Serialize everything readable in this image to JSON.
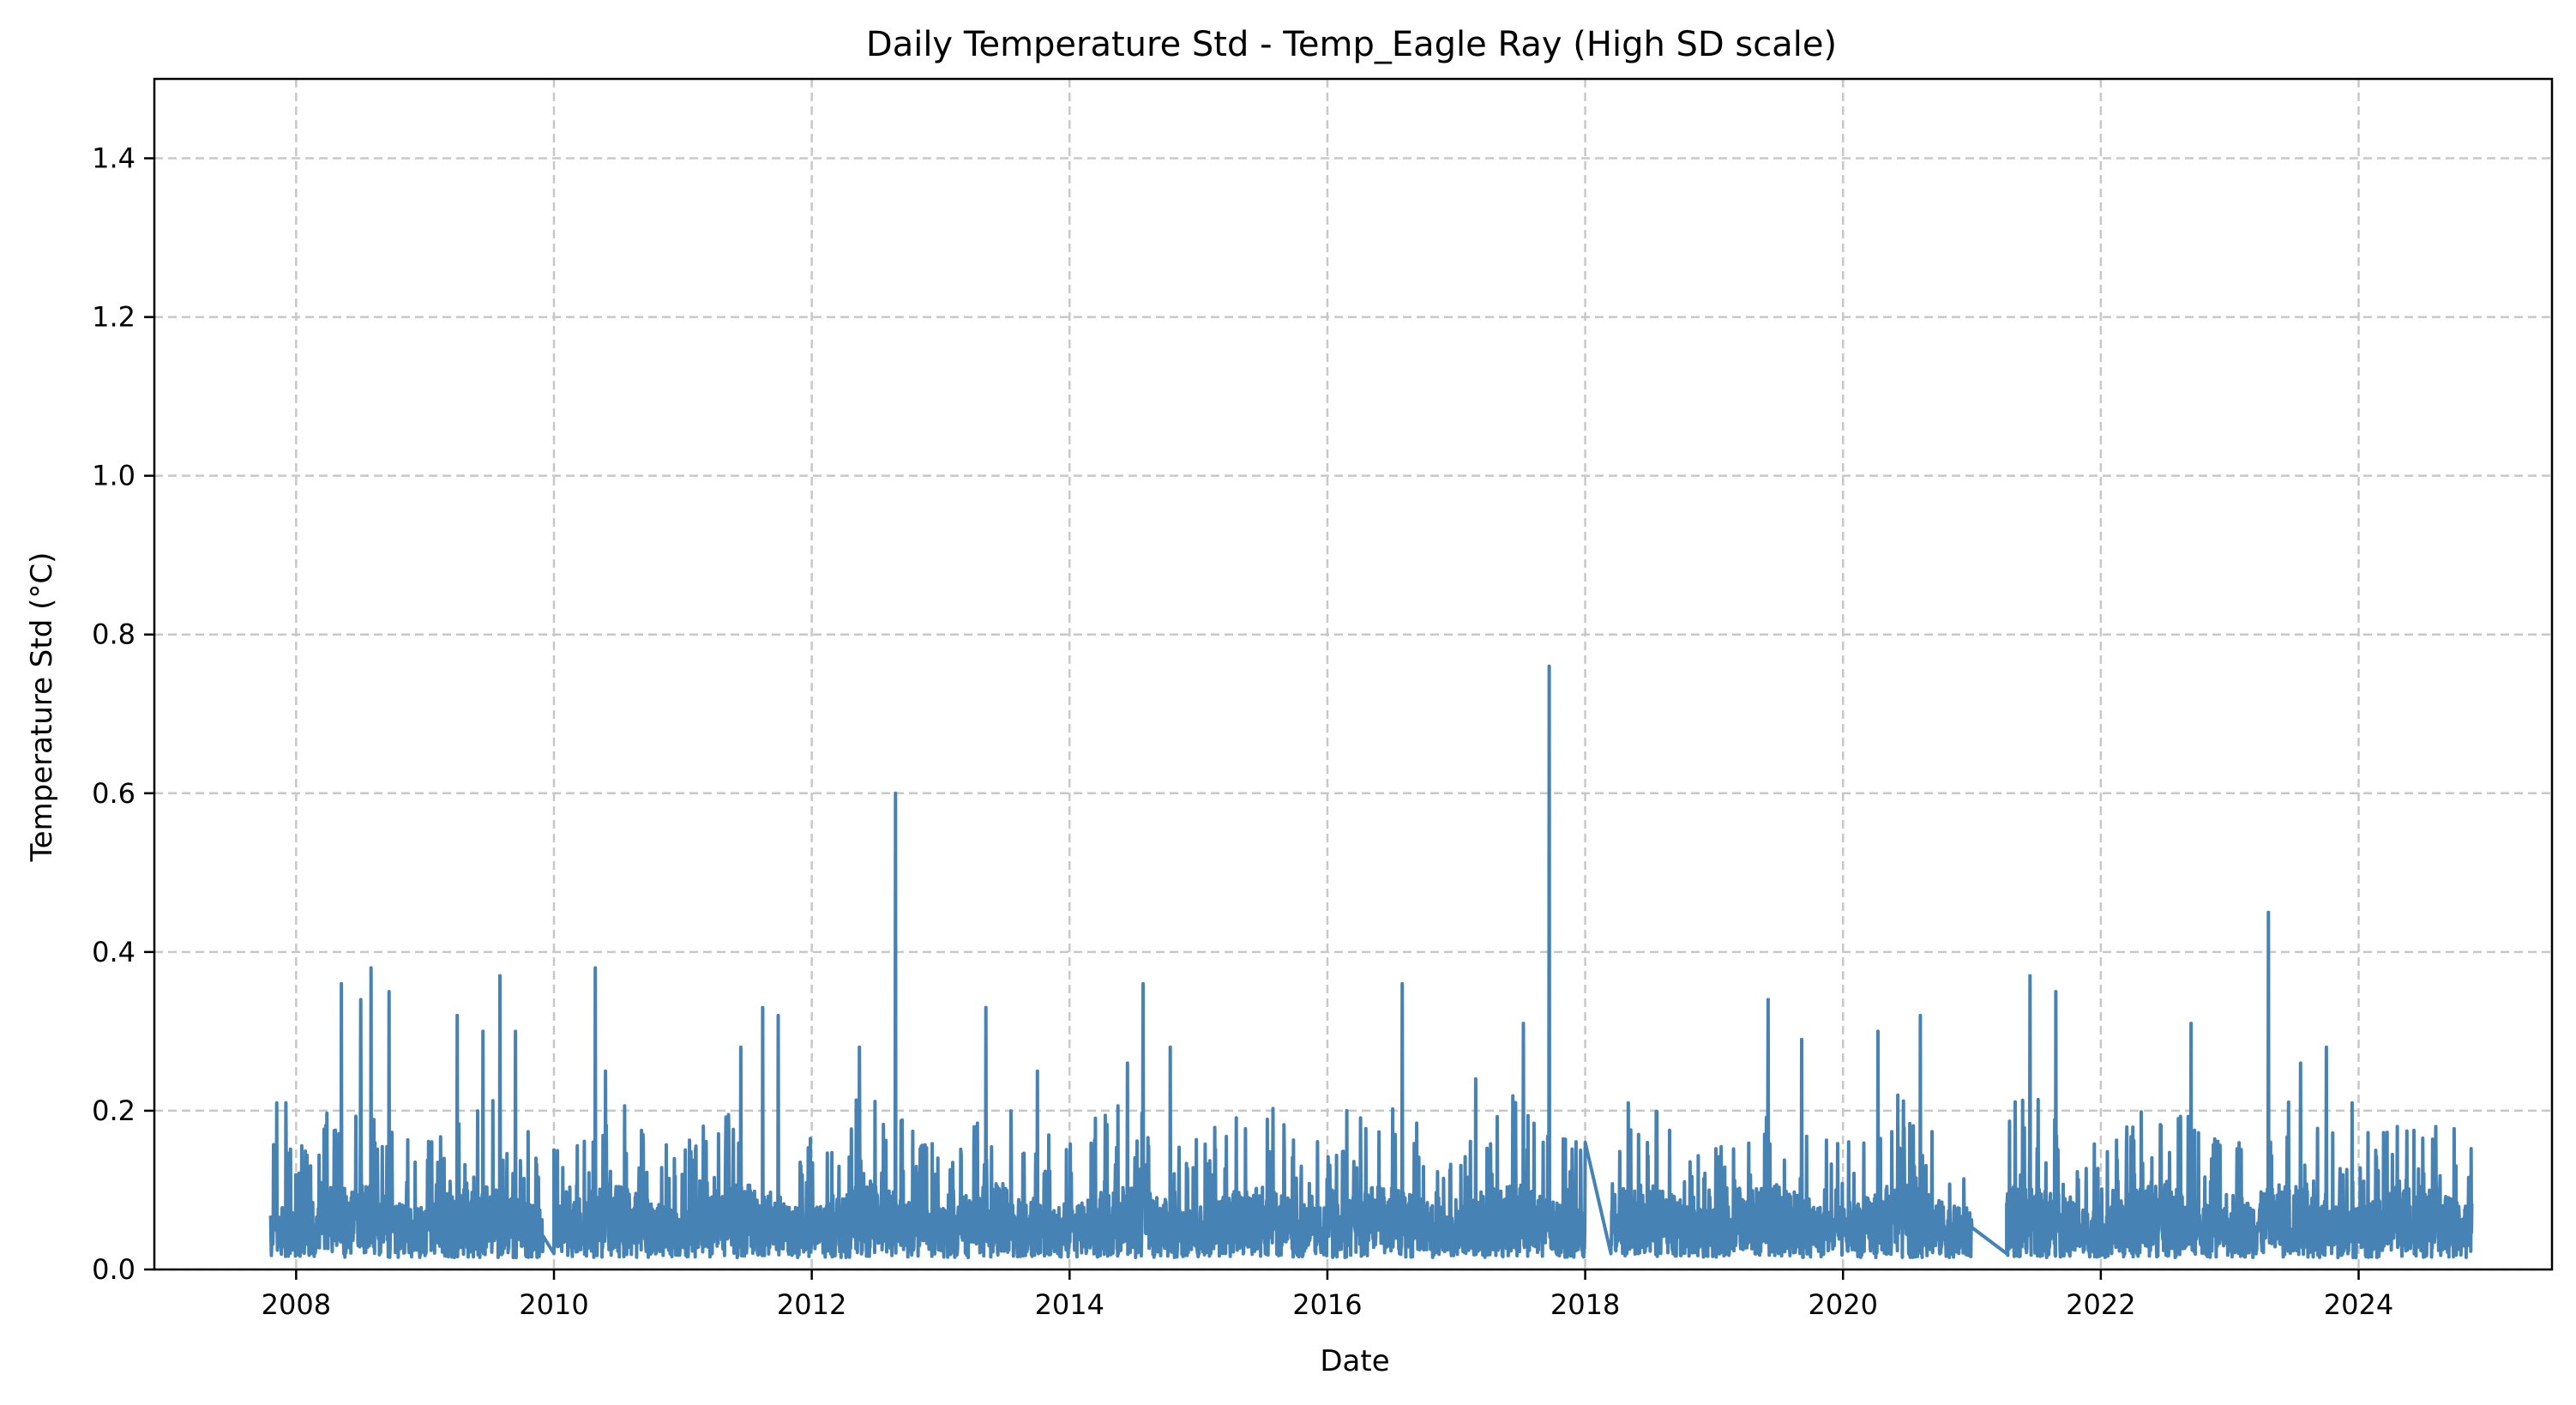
{
  "chart_data": {
    "type": "line",
    "title": "Daily Temperature Std - Temp_Eagle Ray (High SD scale)",
    "xlabel": "Date",
    "ylabel": "Temperature Std (°C)",
    "xlim": [
      2006.9,
      2025.5
    ],
    "ylim": [
      0.0,
      1.5
    ],
    "xticks": [
      2008,
      2010,
      2012,
      2014,
      2016,
      2018,
      2020,
      2022,
      2024
    ],
    "xtick_labels": [
      "2008",
      "2010",
      "2012",
      "2014",
      "2016",
      "2018",
      "2020",
      "2022",
      "2024"
    ],
    "yticks": [
      0.0,
      0.2,
      0.4,
      0.6,
      0.8,
      1.0,
      1.2,
      1.4
    ],
    "ytick_labels": [
      "0.0",
      "0.2",
      "0.4",
      "0.6",
      "0.8",
      "1.0",
      "1.2",
      "1.4"
    ],
    "grid": true,
    "line_color": "#4682b4",
    "data_segments": [
      [
        2007.8,
        2009.92
      ],
      [
        2010.0,
        2018.0
      ],
      [
        2018.2,
        2021.0
      ],
      [
        2021.27,
        2024.88
      ]
    ],
    "peaks": [
      {
        "x": 2007.85,
        "y": 0.21
      },
      {
        "x": 2007.92,
        "y": 0.21
      },
      {
        "x": 2008.35,
        "y": 0.36
      },
      {
        "x": 2008.5,
        "y": 0.34
      },
      {
        "x": 2008.58,
        "y": 0.38
      },
      {
        "x": 2008.72,
        "y": 0.35
      },
      {
        "x": 2009.25,
        "y": 0.32
      },
      {
        "x": 2009.45,
        "y": 0.3
      },
      {
        "x": 2009.58,
        "y": 0.37
      },
      {
        "x": 2009.7,
        "y": 0.3
      },
      {
        "x": 2010.32,
        "y": 0.38
      },
      {
        "x": 2010.4,
        "y": 0.25
      },
      {
        "x": 2011.45,
        "y": 0.28
      },
      {
        "x": 2011.62,
        "y": 0.33
      },
      {
        "x": 2011.74,
        "y": 0.32
      },
      {
        "x": 2012.37,
        "y": 0.28
      },
      {
        "x": 2012.65,
        "y": 0.6
      },
      {
        "x": 2013.35,
        "y": 0.33
      },
      {
        "x": 2013.75,
        "y": 0.25
      },
      {
        "x": 2014.45,
        "y": 0.26
      },
      {
        "x": 2014.57,
        "y": 0.36
      },
      {
        "x": 2014.78,
        "y": 0.28
      },
      {
        "x": 2016.15,
        "y": 0.2
      },
      {
        "x": 2016.58,
        "y": 0.36
      },
      {
        "x": 2017.15,
        "y": 0.24
      },
      {
        "x": 2017.52,
        "y": 0.31
      },
      {
        "x": 2017.72,
        "y": 0.76
      },
      {
        "x": 2019.42,
        "y": 0.34
      },
      {
        "x": 2019.68,
        "y": 0.29
      },
      {
        "x": 2020.27,
        "y": 0.3
      },
      {
        "x": 2020.6,
        "y": 0.32
      },
      {
        "x": 2021.45,
        "y": 0.37
      },
      {
        "x": 2021.65,
        "y": 0.35
      },
      {
        "x": 2022.7,
        "y": 0.31
      },
      {
        "x": 2023.3,
        "y": 0.45
      },
      {
        "x": 2023.55,
        "y": 0.26
      },
      {
        "x": 2023.75,
        "y": 0.28
      },
      {
        "x": 2023.95,
        "y": 0.21
      },
      {
        "x": 2024.3,
        "y": 0.18
      },
      {
        "x": 2024.6,
        "y": 0.18
      }
    ],
    "baseline_mean": 0.07,
    "baseline_min": 0.015,
    "typical_max": 0.2
  }
}
